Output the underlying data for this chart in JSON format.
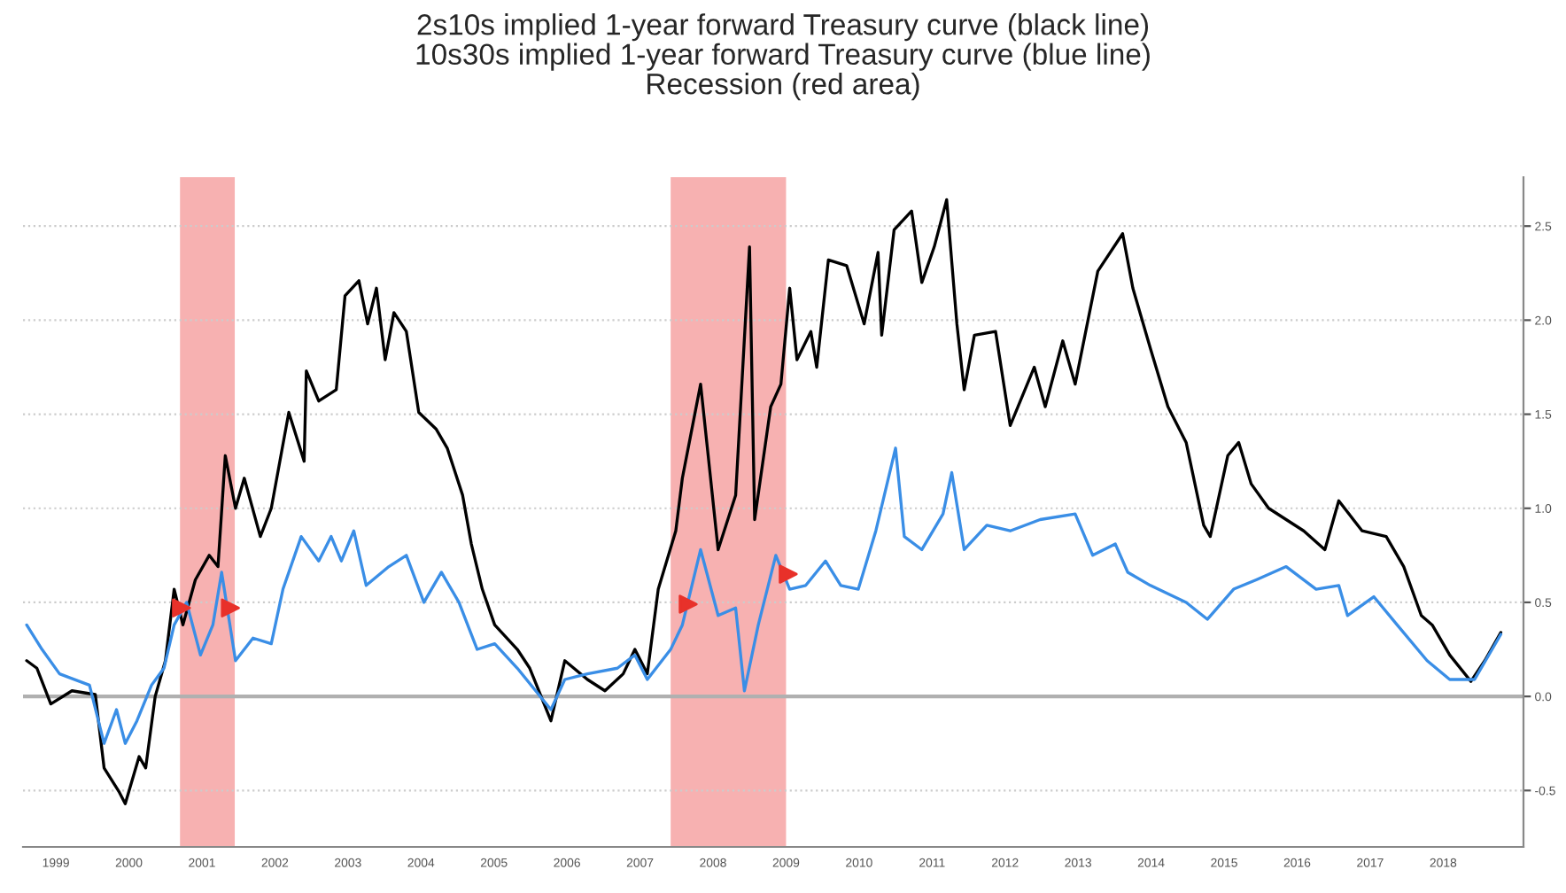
{
  "chart_data": {
    "type": "line",
    "title": "2s10s implied 1-year forward Treasury curve (black line)\n10s30s implied 1-year forward Treasury curve (blue line)\nRecession (red area)",
    "series": [
      {
        "color": "#000000",
        "x": [
          1999.1,
          1999.24,
          1999.43,
          1999.72,
          2000.04,
          2000.16,
          2000.37,
          2000.45,
          2000.64,
          2000.73,
          2000.86,
          2001.0,
          2001.12,
          2001.24,
          2001.41,
          2001.6,
          2001.72,
          2001.82,
          2001.96,
          2002.08,
          2002.3,
          2002.45,
          2002.69,
          2002.9,
          2002.93,
          2003.1,
          2003.34,
          2003.46,
          2003.65,
          2003.77,
          2003.89,
          2004.01,
          2004.13,
          2004.3,
          2004.47,
          2004.71,
          2004.86,
          2005.07,
          2005.19,
          2005.34,
          2005.51,
          2005.82,
          2005.99,
          2006.28,
          2006.47,
          2006.78,
          2007.02,
          2007.27,
          2007.43,
          2007.6,
          2007.75,
          2007.99,
          2008.08,
          2008.33,
          2008.57,
          2008.81,
          2009.0,
          2009.07,
          2009.29,
          2009.43,
          2009.55,
          2009.65,
          2009.84,
          2009.92,
          2010.08,
          2010.33,
          2010.57,
          2010.76,
          2010.81,
          2010.98,
          2011.22,
          2011.36,
          2011.53,
          2011.7,
          2011.84,
          2011.94,
          2012.08,
          2012.37,
          2012.57,
          2012.9,
          2013.05,
          2013.29,
          2013.46,
          2013.77,
          2014.11,
          2014.25,
          2014.49,
          2014.73,
          2014.98,
          2015.22,
          2015.31,
          2015.55,
          2015.7,
          2015.87,
          2016.11,
          2016.35,
          2016.59,
          2016.88,
          2017.07,
          2017.39,
          2017.72,
          2017.96,
          2018.2,
          2018.35,
          2018.59,
          2018.88,
          2019.07,
          2019.29
        ],
        "values": [
          0.19,
          0.15,
          -0.04,
          0.03,
          0.01,
          -0.38,
          -0.51,
          -0.57,
          -0.32,
          -0.38,
          0.0,
          0.19,
          0.57,
          0.38,
          0.62,
          0.75,
          0.69,
          1.28,
          1.0,
          1.16,
          0.85,
          1.0,
          1.51,
          1.25,
          1.73,
          1.57,
          1.63,
          2.13,
          2.21,
          1.98,
          2.17,
          1.79,
          2.04,
          1.94,
          1.51,
          1.42,
          1.32,
          1.07,
          0.81,
          0.57,
          0.38,
          0.25,
          0.15,
          -0.13,
          0.19,
          0.09,
          0.03,
          0.12,
          0.25,
          0.12,
          0.57,
          0.88,
          1.16,
          1.66,
          0.78,
          1.07,
          2.39,
          0.94,
          1.54,
          1.66,
          2.17,
          1.79,
          1.94,
          1.75,
          2.32,
          2.29,
          1.98,
          2.36,
          1.92,
          2.48,
          2.58,
          2.2,
          2.39,
          2.64,
          1.98,
          1.63,
          1.92,
          1.94,
          1.44,
          1.75,
          1.54,
          1.89,
          1.66,
          2.26,
          2.46,
          2.17,
          1.85,
          1.54,
          1.35,
          0.91,
          0.85,
          1.28,
          1.35,
          1.13,
          1.0,
          0.94,
          0.88,
          0.78,
          1.04,
          0.88,
          0.85,
          0.69,
          0.43,
          0.38,
          0.22,
          0.08,
          0.19,
          0.34
        ]
      },
      {
        "color": "#3a8ee6",
        "x": [
          1999.1,
          1999.31,
          1999.55,
          1999.96,
          2000.16,
          2000.33,
          2000.45,
          2000.61,
          2000.81,
          2000.98,
          2001.12,
          2001.29,
          2001.48,
          2001.65,
          2001.77,
          2001.96,
          2002.2,
          2002.45,
          2002.61,
          2002.86,
          2003.1,
          2003.27,
          2003.41,
          2003.58,
          2003.75,
          2004.06,
          2004.3,
          2004.54,
          2004.78,
          2005.02,
          2005.27,
          2005.51,
          2005.82,
          2006.28,
          2006.47,
          2006.78,
          2007.19,
          2007.43,
          2007.6,
          2007.92,
          2008.08,
          2008.33,
          2008.57,
          2008.81,
          2008.93,
          2009.12,
          2009.36,
          2009.55,
          2009.77,
          2010.04,
          2010.25,
          2010.49,
          2010.73,
          2011.0,
          2011.12,
          2011.36,
          2011.65,
          2011.77,
          2011.94,
          2012.25,
          2012.57,
          2012.98,
          2013.46,
          2013.7,
          2014.01,
          2014.18,
          2014.49,
          2014.98,
          2015.27,
          2015.63,
          2015.94,
          2016.35,
          2016.76,
          2017.07,
          2017.19,
          2017.55,
          2017.87,
          2018.28,
          2018.59,
          2018.93,
          2019.17,
          2019.29
        ],
        "values": [
          0.38,
          0.25,
          0.12,
          0.06,
          -0.25,
          -0.07,
          -0.25,
          -0.13,
          0.06,
          0.15,
          0.38,
          0.5,
          0.22,
          0.38,
          0.66,
          0.19,
          0.31,
          0.28,
          0.57,
          0.85,
          0.72,
          0.85,
          0.72,
          0.88,
          0.59,
          0.69,
          0.75,
          0.5,
          0.66,
          0.5,
          0.25,
          0.28,
          0.15,
          -0.07,
          0.09,
          0.12,
          0.15,
          0.22,
          0.09,
          0.25,
          0.38,
          0.78,
          0.43,
          0.47,
          0.03,
          0.38,
          0.75,
          0.57,
          0.59,
          0.72,
          0.59,
          0.57,
          0.88,
          1.32,
          0.85,
          0.78,
          0.97,
          1.19,
          0.78,
          0.91,
          0.88,
          0.94,
          0.97,
          0.75,
          0.81,
          0.66,
          0.59,
          0.5,
          0.41,
          0.57,
          0.62,
          0.69,
          0.57,
          0.59,
          0.43,
          0.53,
          0.38,
          0.19,
          0.09,
          0.09,
          0.25,
          0.33
        ]
      },
      {
        "type": "scatter",
        "color": "#e8312a",
        "marker": "triangle",
        "x": [
          2001.22,
          2001.89,
          2008.16,
          2009.53
        ],
        "values": [
          0.47,
          0.47,
          0.49,
          0.65
        ]
      }
    ],
    "bands": [
      {
        "axis": "x",
        "from": 2001.2,
        "to": 2001.95,
        "color": "#f6a3a3"
      },
      {
        "axis": "x",
        "from": 2007.92,
        "to": 2009.5,
        "color": "#f6a3a3"
      }
    ],
    "ref_lines": [
      {
        "axis": "y",
        "value": 0.0,
        "color": "#b0b0b0"
      }
    ],
    "xlim": [
      1999.05,
      2019.6
    ],
    "xticks": [
      {
        "value": 1999.5,
        "label": "1999"
      },
      {
        "value": 2000.5,
        "label": "2000"
      },
      {
        "value": 2001.5,
        "label": "2001"
      },
      {
        "value": 2002.5,
        "label": "2002"
      },
      {
        "value": 2003.5,
        "label": "2003"
      },
      {
        "value": 2004.5,
        "label": "2004"
      },
      {
        "value": 2005.5,
        "label": "2005"
      },
      {
        "value": 2006.5,
        "label": "2006"
      },
      {
        "value": 2007.5,
        "label": "2007"
      },
      {
        "value": 2008.5,
        "label": "2008"
      },
      {
        "value": 2009.5,
        "label": "2009"
      },
      {
        "value": 2010.5,
        "label": "2010"
      },
      {
        "value": 2011.5,
        "label": "2011"
      },
      {
        "value": 2012.5,
        "label": "2012"
      },
      {
        "value": 2013.5,
        "label": "2013"
      },
      {
        "value": 2014.5,
        "label": "2014"
      },
      {
        "value": 2015.5,
        "label": "2015"
      },
      {
        "value": 2016.5,
        "label": "2016"
      },
      {
        "value": 2017.5,
        "label": "2017"
      },
      {
        "value": 2018.5,
        "label": "2018"
      }
    ],
    "ylim": [
      -0.8,
      2.76
    ],
    "yticks": [
      {
        "value": -0.5,
        "label": "-0.5"
      },
      {
        "value": 0.0,
        "label": "0.0"
      },
      {
        "value": 0.5,
        "label": "0.5"
      },
      {
        "value": 1.0,
        "label": "1.0"
      },
      {
        "value": 1.5,
        "label": "1.5"
      },
      {
        "value": 2.0,
        "label": "2.0"
      },
      {
        "value": 2.5,
        "label": "2.5"
      }
    ],
    "grid": "y"
  }
}
